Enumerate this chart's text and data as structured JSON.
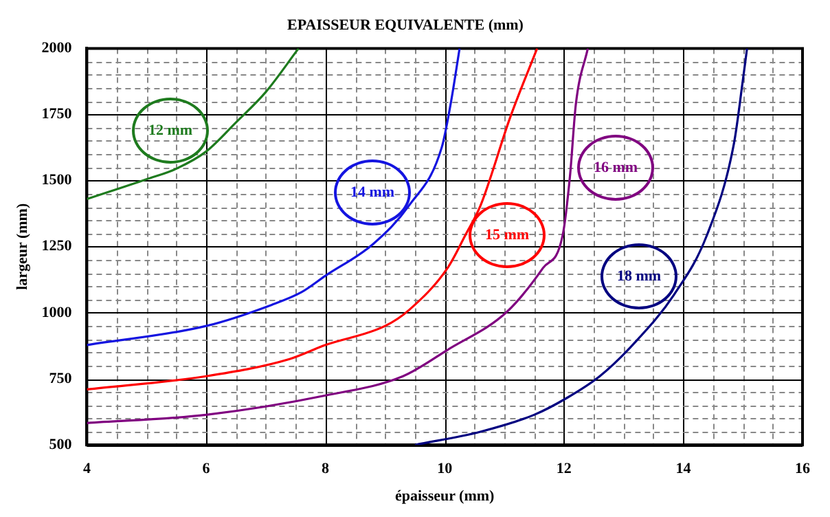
{
  "chart_data": {
    "type": "line",
    "title": "EPAISSEUR EQUIVALENTE (mm)",
    "xlabel": "épaisseur (mm)",
    "ylabel": "largeur (mm)",
    "xlim": [
      4,
      16
    ],
    "ylim": [
      500,
      2000
    ],
    "xticks": [
      4,
      {
        "value": 4.5,
        "label": null
      },
      {
        "value": 5,
        "label": null
      },
      {
        "value": 5.5,
        "label": null
      },
      6,
      {
        "value": 6.5,
        "label": null
      },
      {
        "value": 7,
        "label": null
      },
      {
        "value": 7.5,
        "label": null
      },
      8,
      {
        "value": 8.5,
        "label": null
      },
      {
        "value": 9,
        "label": null
      },
      {
        "value": 9.5,
        "label": null
      },
      10,
      {
        "value": 10.5,
        "label": null
      },
      {
        "value": 11,
        "label": null
      },
      {
        "value": 11.5,
        "label": null
      },
      12,
      {
        "value": 12.5,
        "label": null
      },
      {
        "value": 13,
        "label": null
      },
      {
        "value": 13.5,
        "label": null
      },
      14,
      {
        "value": 14.5,
        "label": null
      },
      {
        "value": 15,
        "label": null
      },
      {
        "value": 15.5,
        "label": null
      },
      16
    ],
    "yticks": [
      500,
      {
        "value": 550,
        "label": null
      },
      {
        "value": 600,
        "label": null
      },
      {
        "value": 650,
        "label": null
      },
      {
        "value": 700,
        "label": null
      },
      750,
      {
        "value": 800,
        "label": null
      },
      {
        "value": 850,
        "label": null
      },
      {
        "value": 900,
        "label": null
      },
      {
        "value": 950,
        "label": null
      },
      1000,
      {
        "value": 1050,
        "label": null
      },
      {
        "value": 1100,
        "label": null
      },
      {
        "value": 1150,
        "label": null
      },
      {
        "value": 1200,
        "label": null
      },
      1250,
      {
        "value": 1300,
        "label": null
      },
      {
        "value": 1350,
        "label": null
      },
      {
        "value": 1400,
        "label": null
      },
      {
        "value": 1450,
        "label": null
      },
      1500,
      {
        "value": 1550,
        "label": null
      },
      {
        "value": 1600,
        "label": null
      },
      {
        "value": 1650,
        "label": null
      },
      {
        "value": 1700,
        "label": null
      },
      1750,
      {
        "value": 1800,
        "label": null
      },
      {
        "value": 1850,
        "label": null
      },
      {
        "value": 1900,
        "label": null
      },
      {
        "value": 1950,
        "label": null
      },
      2000
    ],
    "grid": true,
    "legend": false,
    "marker": "none",
    "line_style": "solid",
    "series": [
      {
        "name": "12 mm",
        "color": "#1e7b1e",
        "x": [
          4,
          5,
          5.5,
          6,
          6.5,
          7,
          7.55
        ],
        "values": [
          1430,
          1505,
          1545,
          1610,
          1720,
          1835,
          2000
        ]
      },
      {
        "name": "14 mm",
        "color": "#1414e0",
        "x": [
          4,
          6,
          7.1,
          7.6,
          8,
          8.8,
          9.4,
          9.95,
          10.1,
          10.25
        ],
        "values": [
          878,
          950,
          1030,
          1078,
          1140,
          1260,
          1405,
          1625,
          1790,
          2000
        ]
      },
      {
        "name": "15 mm",
        "color": "#ff0000",
        "x": [
          4,
          6,
          7.4,
          8,
          9,
          9.4,
          10.05,
          10.35,
          10.6,
          11.1,
          11.55
        ],
        "values": [
          710,
          760,
          825,
          878,
          950,
          1010,
          1170,
          1295,
          1405,
          1740,
          2000
        ]
      },
      {
        "name": "16 mm",
        "color": "#800080",
        "x": [
          4,
          6,
          8,
          9.3,
          10.05,
          11.05,
          11.65,
          11.98,
          12.1,
          12.2,
          12.4
        ],
        "values": [
          583,
          614,
          687,
          760,
          860,
          1005,
          1170,
          1295,
          1515,
          1790,
          2000
        ]
      },
      {
        "name": "18 mm",
        "color": "#000080",
        "x": [
          9.5,
          10.6,
          11.5,
          12.05,
          12.6,
          13.15,
          13.85,
          14.4,
          14.85,
          15,
          15.07
        ],
        "values": [
          500,
          550,
          614,
          678,
          760,
          878,
          1070,
          1295,
          1640,
          1880,
          2000
        ]
      }
    ]
  }
}
